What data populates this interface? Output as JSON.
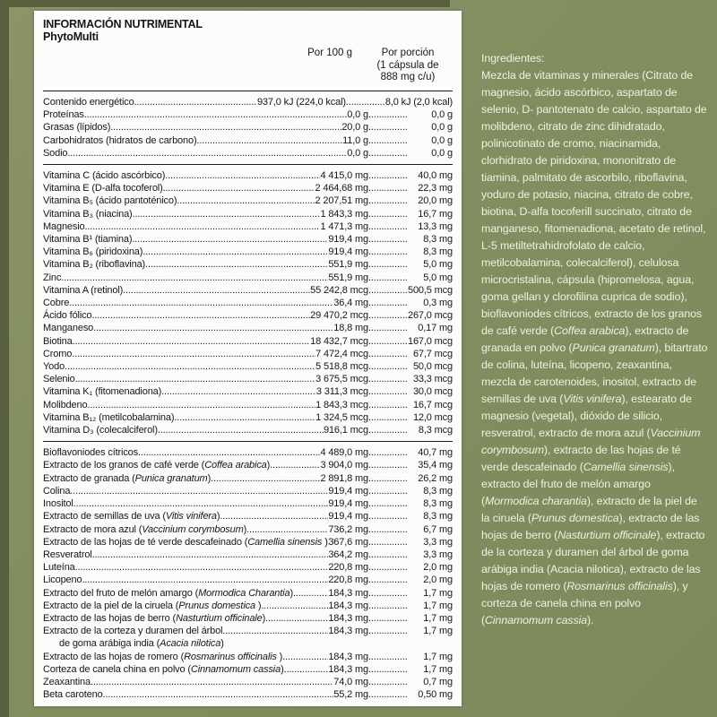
{
  "header": {
    "title": "INFORMACIÓN NUTRIMENTAL",
    "product": "PhytoMulti",
    "per100": "Por 100 g",
    "portion_line1": "Por porción",
    "portion_line2": "(1 cápsula de",
    "portion_line3": "888 mg c/u)"
  },
  "table": {
    "sections": [
      {
        "rows": [
          {
            "name": "Contenido energético",
            "v1": "937,0 kJ (224,0 kcal)",
            "v2": "8,0 kJ (2,0 kcal)"
          },
          {
            "name": "Proteínas ",
            "v1": "0,0 g",
            "v2": "0,0 g"
          },
          {
            "name": "Grasas (lípidos)",
            "v1": "20,0 g",
            "v2": "0,0 g"
          },
          {
            "name": "Carbohidratos (hidratos de carbono)",
            "v1": "11,0 g",
            "v2": "0,0 g"
          },
          {
            "name": "Sodio ",
            "v1": "0,0 g",
            "v2": "0,0 g"
          }
        ]
      },
      {
        "rows": [
          {
            "name": "Vitamina C (ácido ascórbico) ",
            "v1": "4 415,0 mg",
            "v2": "40,0 mg"
          },
          {
            "name": "Vitamina E (D-alfa tocoferol)",
            "v1": "2 464,68 mg",
            "v2": "22,3 mg"
          },
          {
            "name": "Vitamina B₅ (ácido pantoténico)",
            "v1": "2 207,51 mg",
            "v2": "20,0 mg"
          },
          {
            "name": "Vitamina B₃ (niacina) ",
            "v1": "1 843,3 mg",
            "v2": "16,7 mg"
          },
          {
            "name": "Magnesio",
            "v1": "1 471,3 mg",
            "v2": "13,3 mg"
          },
          {
            "name": "Vitamina B¹ (tiamina)",
            "v1": "919,4 mg",
            "v2": "8,3 mg"
          },
          {
            "name": "Vitamina B₆ (piridoxina) ",
            "v1": "919,4 mg",
            "v2": "8,3 mg"
          },
          {
            "name": "Vitamina B₂ (riboflavina) ",
            "v1": "551,9 mg",
            "v2": "5,0 mg"
          },
          {
            "name": "Zinc ",
            "v1": "551,9 mg",
            "v2": "5,0 mg"
          },
          {
            "name": "Vitamina A (retinol) ",
            "v1": "55 242,8 mcg",
            "v2": "500,5 mcg"
          },
          {
            "name": "Cobre",
            "v1": "36,4 mg",
            "v2": "0,3 mg"
          },
          {
            "name": "Ácido fólico",
            "v1": "29 470,2 mcg",
            "v2": "267,0 mcg"
          },
          {
            "name": "Manganeso",
            "v1": "18,8 mg",
            "v2": "0,17 mg"
          },
          {
            "name": "Biotina ",
            "v1": "18 432,7 mcg",
            "v2": "167,0 mcg"
          },
          {
            "name": "Cromo",
            "v1": "7 472,4 mcg",
            "v2": "67,7 mcg"
          },
          {
            "name": "Yodo ",
            "v1": "5 518,8 mcg",
            "v2": "50,0 mcg"
          },
          {
            "name": "Selenio ",
            "v1": "3 675,5 mcg",
            "v2": "33,3 mcg"
          },
          {
            "name": "Vitamina K₁ (fitomenadiona) ",
            "v1": "3 311,3 mcg",
            "v2": "30,0 mcg"
          },
          {
            "name": "Molibdeno",
            "v1": "1 843,3 mcg",
            "v2": "16,7 mcg"
          },
          {
            "name": "Vitamina B₁₂ (metilcobalamina) ",
            "v1": "1 324,5 mcg",
            "v2": "12,0 mcg"
          },
          {
            "name": "Vitamina D₃ (colecalciferol)",
            "v1": "916,1 mcg",
            "v2": "8,3 mcg"
          }
        ]
      },
      {
        "rows": [
          {
            "name": "Bioflavoniodes cítricos",
            "v1": "4 489,0 mg",
            "v2": "40,7 mg"
          },
          {
            "name": "Extracto de los granos de café verde",
            "latin": "Coffea arabica",
            "v1": "3 904,0 mg",
            "v2": "35,4 mg"
          },
          {
            "name": "Extracto de granada",
            "latin": "Punica granatum",
            "v1": "2 891,8 mg",
            "v2": "26,2 mg"
          },
          {
            "name": "Colina ",
            "v1": "919,4 mg",
            "v2": "8,3 mg"
          },
          {
            "name": "Inositol ",
            "v1": "919,4 mg",
            "v2": "8,3 mg"
          },
          {
            "name": "Extracto de semillas de uva",
            "latin": "Vitis vinifera",
            "v1": "919,4 mg",
            "v2": "8,3 mg"
          },
          {
            "name": "Extracto de mora azul",
            "latin": "Vaccinium corymbosum",
            "v1": "736,2 mg",
            "v2": "6,7 mg"
          },
          {
            "name": "Extracto de las hojas de té verde descafeinado",
            "latin": "Camellia sinensis ",
            "v1": "367,6 mg",
            "v2": "3,3 mg"
          },
          {
            "name": "Resveratrol ",
            "v1": "364,2 mg",
            "v2": "3,3 mg"
          },
          {
            "name": "Luteína ",
            "v1": "220,8 mg",
            "v2": "2,0 mg"
          },
          {
            "name": "Licopeno",
            "v1": "220,8 mg",
            "v2": "2,0 mg"
          },
          {
            "name": "Extracto del fruto de melón amargo",
            "latin": "Mormodica Charantia",
            "v1": "184,3 mg",
            "v2": "1,7 mg"
          },
          {
            "name": "Extracto de la piel de la ciruela",
            "latin": "Prunus domestica ",
            "v1": "184,3 mg",
            "v2": "1,7 mg"
          },
          {
            "name": "Extracto de las hojas de berro",
            "latin": "Nasturtium officinale",
            "v1": "184,3 mg",
            "v2": "1,7 mg"
          },
          {
            "name": "Extracto de la corteza y duramen del árbol ",
            "name2": "de goma arábiga india",
            "latin2": "Acacia nilotica",
            "v1": "184,3 mg",
            "v2": "1,7 mg"
          },
          {
            "name": "Extracto de las hojas de romero",
            "latin": "Rosmarinus officinalis ",
            "v1": "184,3 mg",
            "v2": "1,7 mg"
          },
          {
            "name": "Corteza de canela china en polvo",
            "latin": "Cinnamomum cassia",
            "v1": "184,3 mg",
            "v2": "1,7 mg"
          },
          {
            "name": "Zeaxantina",
            "v1": "74,0 mg",
            "v2": "0,7 mg"
          },
          {
            "name": "Beta caroteno",
            "v1": "55,2 mg",
            "v2": "0,50 mg"
          }
        ]
      }
    ]
  },
  "ingredients": {
    "title": "Ingredientes:",
    "segments": [
      {
        "text": "Mezcla de vitaminas y minerales (Citrato de magnesio, ácido ascórbico, aspartato de selenio, D- pantotenato de calcio, aspartato de molibdeno, citrato de zinc dihidratado, polinicotinato de cromo, niacinamida, clorhidrato de piridoxina, mononitrato de tiamina, palmitato de ascorbilo, riboflavina, yoduro de potasio, niacina, citrato de cobre, biotina, D-alfa tocoferill succinato, citrato de manganeso, fitomenadiona, acetato de retinol, L-5 metiltetrahidrofolato de calcio, metilcobalamina, colecalciferol), celulosa microcristalina, cápsula (hipromelosa, agua, goma gellan y clorofilina cuprica de sodio), bioflavoniodes cítricos, extracto de los granos de café verde ("
      },
      {
        "text": "Coffea arabica",
        "italic": true
      },
      {
        "text": "), extracto de granada en polvo ("
      },
      {
        "text": "Punica granatum",
        "italic": true
      },
      {
        "text": "), bitartrato de colina, luteína, licopeno, zeaxantina, mezcla de carotenoides, inositol, extracto de semillas de uva ("
      },
      {
        "text": "Vitis vinifera",
        "italic": true
      },
      {
        "text": "), estearato de magnesio (vegetal), dióxido de silicio, resveratrol, extracto de mora azul ("
      },
      {
        "text": "Vaccinium corymbosum",
        "italic": true
      },
      {
        "text": "), extracto de las hojas de té verde descafeinado ("
      },
      {
        "text": "Camellia sinensis",
        "italic": true
      },
      {
        "text": "), extracto del fruto de melón amargo ("
      },
      {
        "text": "Mormodica charantia",
        "italic": true
      },
      {
        "text": "), extracto de la piel de la ciruela ("
      },
      {
        "text": "Prunus domestica",
        "italic": true
      },
      {
        "text": "), extracto de las hojas de berro ("
      },
      {
        "text": "Nasturtium officinale",
        "italic": true
      },
      {
        "text": "), extracto de la corteza y duramen del árbol de goma arábiga india (Acacia nilotica), extracto de las hojas de romero ("
      },
      {
        "text": "Rosmarinus officinalis",
        "italic": true
      },
      {
        "text": "), y corteza de canela china en polvo ("
      },
      {
        "text": "Cinnamomum cassia",
        "italic": true
      },
      {
        "text": ")."
      }
    ]
  },
  "colors": {
    "background_olive": "#828E5F",
    "edge_dark_olive": "#575F3E",
    "panel_white": "#FCFDFB",
    "table_text": "#161616",
    "ingredients_text": "#F0F0E3"
  }
}
